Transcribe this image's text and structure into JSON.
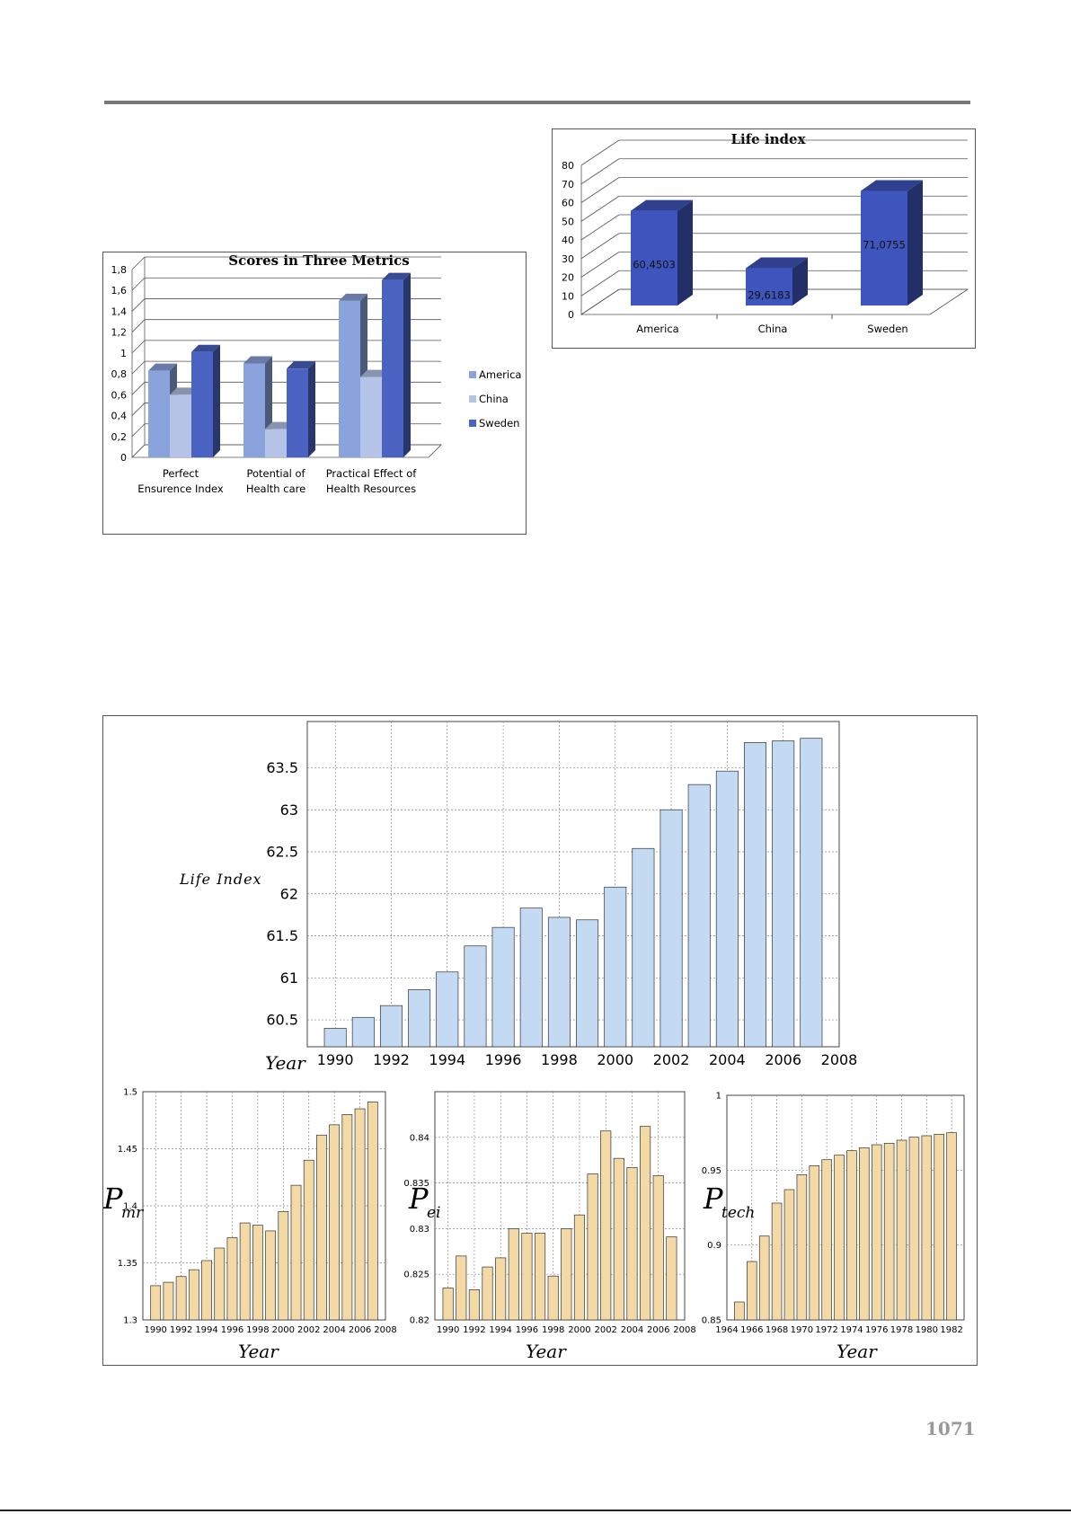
{
  "page": {
    "page_number": "1071"
  },
  "chart_data": [
    {
      "id": "scores",
      "type": "bar",
      "title": "Scores in Three Metrics",
      "categories": [
        "Perfect Ensurence Index",
        "Potential of Health care",
        "Practical Effect of Health Resources"
      ],
      "category_lines": [
        [
          "Perfect",
          "Ensurence Index"
        ],
        [
          "Potential of",
          "Health care"
        ],
        [
          "Practical Effect of",
          "Health Resources"
        ]
      ],
      "series": [
        {
          "name": "America",
          "values": [
            0.83,
            0.9,
            1.5
          ],
          "color": "#8ba3dc"
        },
        {
          "name": "China",
          "values": [
            0.6,
            0.27,
            0.77
          ],
          "color": "#b5c4e6"
        },
        {
          "name": "Sweden",
          "values": [
            1.01,
            0.85,
            1.7
          ],
          "color": "#4a63c3"
        }
      ],
      "ylim": [
        0,
        1.8
      ],
      "yticks": [
        "0",
        "0,2",
        "0,4",
        "0,6",
        "0,8",
        "1",
        "1,2",
        "1,4",
        "1,6",
        "1,8"
      ],
      "legend": "right",
      "grid": true
    },
    {
      "id": "life-index-3d",
      "type": "bar",
      "title": "Life index",
      "categories": [
        "America",
        "China",
        "Sweden"
      ],
      "values": [
        60.4503,
        29.6183,
        71.0755
      ],
      "data_labels": [
        "60,4503",
        "29,6183",
        "71,0755"
      ],
      "color": "#3f55be",
      "ylim": [
        0,
        80
      ],
      "yticks": [
        "0",
        "10",
        "20",
        "30",
        "40",
        "50",
        "60",
        "70",
        "80"
      ],
      "grid": true
    },
    {
      "id": "life-index-years",
      "type": "bar",
      "ylabel": "Life Index",
      "xlabel": "Year",
      "x": [
        1990,
        1991,
        1992,
        1993,
        1994,
        1995,
        1996,
        1997,
        1998,
        1999,
        2000,
        2001,
        2002,
        2003,
        2004,
        2005,
        2006,
        2007
      ],
      "values": [
        60.4,
        60.53,
        60.67,
        60.86,
        61.07,
        61.38,
        61.6,
        61.83,
        61.72,
        61.69,
        62.08,
        62.54,
        63.0,
        63.3,
        63.46,
        63.8,
        63.82,
        63.85
      ],
      "ylim": [
        60.18,
        64.05
      ],
      "yticks": [
        "60.5",
        "61",
        "61.5",
        "62",
        "62.5",
        "63",
        "63.5"
      ],
      "xticks": [
        "1990",
        "1992",
        "1994",
        "1996",
        "1998",
        "2000",
        "2002",
        "2004",
        "2006",
        "2008"
      ],
      "xlim": [
        1989,
        2008
      ],
      "color": "#c4daf2",
      "grid": true
    },
    {
      "id": "p-mr",
      "type": "bar",
      "ylabel": "P_mr",
      "ylabel_main": "P",
      "ylabel_sub": "mr",
      "xlabel": "Year",
      "x": [
        1990,
        1991,
        1992,
        1993,
        1994,
        1995,
        1996,
        1997,
        1998,
        1999,
        2000,
        2001,
        2002,
        2003,
        2004,
        2005,
        2006,
        2007
      ],
      "values": [
        1.33,
        1.333,
        1.338,
        1.344,
        1.352,
        1.363,
        1.372,
        1.385,
        1.383,
        1.378,
        1.395,
        1.418,
        1.44,
        1.462,
        1.471,
        1.48,
        1.485,
        1.491
      ],
      "ylim": [
        1.3,
        1.5
      ],
      "yticks": [
        "1.3",
        "1.35",
        "1.4",
        "1.45",
        "1.5"
      ],
      "xticks": [
        "1990",
        "1992",
        "1994",
        "1996",
        "1998",
        "2000",
        "2002",
        "2004",
        "2006",
        "2008"
      ],
      "xlim": [
        1989,
        2008
      ],
      "color": "#f3d9a6",
      "grid": true
    },
    {
      "id": "p-ei",
      "type": "bar",
      "ylabel": "P_ei",
      "ylabel_main": "P",
      "ylabel_sub": "ei",
      "xlabel": "Year",
      "x": [
        1990,
        1991,
        1992,
        1993,
        1994,
        1995,
        1996,
        1997,
        1998,
        1999,
        2000,
        2001,
        2002,
        2003,
        2004,
        2005,
        2006,
        2007
      ],
      "values": [
        0.8235,
        0.827,
        0.8233,
        0.8258,
        0.8268,
        0.83,
        0.8295,
        0.8295,
        0.8248,
        0.83,
        0.8315,
        0.836,
        0.8407,
        0.8377,
        0.8367,
        0.8412,
        0.8358,
        0.8291
      ],
      "ylim": [
        0.82,
        0.845
      ],
      "yticks": [
        "0.82",
        "0.825",
        "0.83",
        "0.835",
        "0.84"
      ],
      "xticks": [
        "1990",
        "1992",
        "1994",
        "1996",
        "1998",
        "2000",
        "2002",
        "2004",
        "2006",
        "2008"
      ],
      "xlim": [
        1989,
        2008
      ],
      "color": "#f3d9a6",
      "grid": true
    },
    {
      "id": "p-tech",
      "type": "bar",
      "ylabel": "P_tech",
      "ylabel_main": "P",
      "ylabel_sub": "tech",
      "xlabel": "Year",
      "x": [
        1965,
        1966,
        1967,
        1968,
        1969,
        1970,
        1971,
        1972,
        1973,
        1974,
        1975,
        1976,
        1977,
        1978,
        1979,
        1980,
        1981,
        1982
      ],
      "values": [
        0.862,
        0.889,
        0.906,
        0.928,
        0.937,
        0.947,
        0.953,
        0.957,
        0.96,
        0.963,
        0.965,
        0.967,
        0.968,
        0.97,
        0.972,
        0.973,
        0.974,
        0.975
      ],
      "ylim": [
        0.85,
        1.0
      ],
      "yticks": [
        "0.85",
        "0.9",
        "0.95",
        "1"
      ],
      "xticks": [
        "1964",
        "1966",
        "1968",
        "1970",
        "1972",
        "1974",
        "1976",
        "1978",
        "1980",
        "1982"
      ],
      "xlim": [
        1964,
        1983
      ],
      "color": "#f3d9a6",
      "grid": true
    }
  ]
}
